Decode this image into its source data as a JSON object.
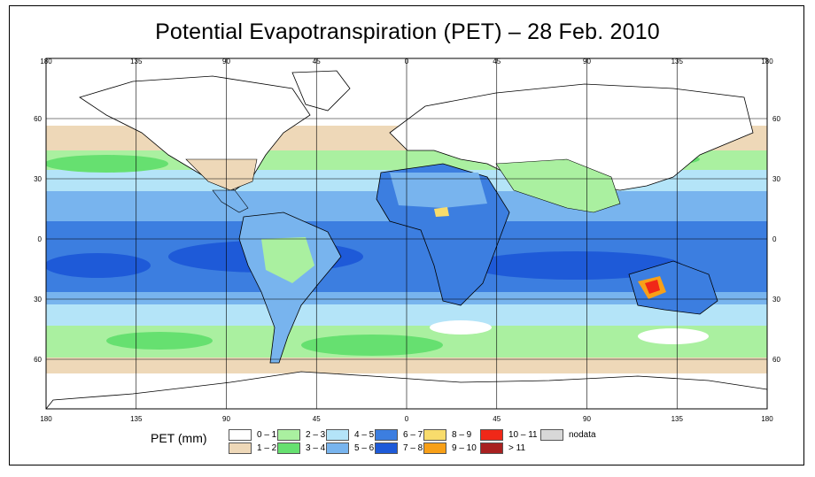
{
  "title": "Potential Evapotranspiration (PET) – 28 Feb. 2010",
  "axes": {
    "top_ticks": [
      "180",
      "135",
      "90",
      "45",
      "0",
      "45",
      "90",
      "135",
      "180"
    ],
    "bottom_ticks": [
      "180",
      "135",
      "90",
      "45",
      "0",
      "45",
      "90",
      "135",
      "180"
    ],
    "left_ticks": [
      "60",
      "30",
      "0",
      "30",
      "60"
    ],
    "right_ticks": [
      "60",
      "30",
      "0",
      "30",
      "60"
    ]
  },
  "legend": {
    "title": "PET (mm)",
    "classes": [
      {
        "label": "0 – 1",
        "color": "#ffffff"
      },
      {
        "label": "1 – 2",
        "color": "#eed8b8"
      },
      {
        "label": "2 – 3",
        "color": "#aaf0a0"
      },
      {
        "label": "3 – 4",
        "color": "#66e070"
      },
      {
        "label": "4 – 5",
        "color": "#b4e4f8"
      },
      {
        "label": "5 – 6",
        "color": "#78b4ee"
      },
      {
        "label": "6 – 7",
        "color": "#3c7ee0"
      },
      {
        "label": "7 – 8",
        "color": "#1e5ad8"
      },
      {
        "label": "8 – 9",
        "color": "#f8dc6c"
      },
      {
        "label": "9 – 10",
        "color": "#f8a018"
      },
      {
        "label": "10 – 11",
        "color": "#f02818"
      },
      {
        "label": "> 11",
        "color": "#a82020"
      },
      {
        "label": "nodata",
        "color": "#d8d8d8"
      }
    ]
  }
}
